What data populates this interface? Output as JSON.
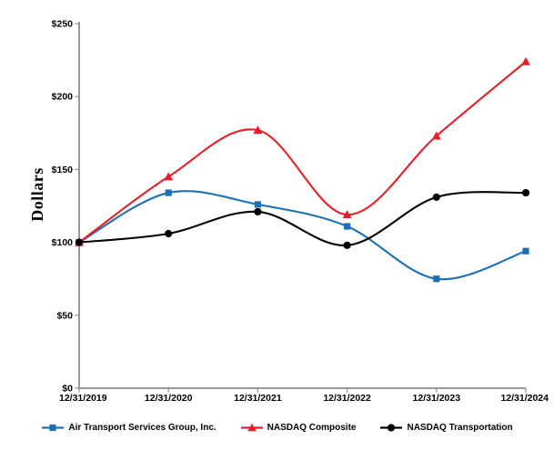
{
  "chart_data": {
    "type": "line",
    "title": "",
    "xlabel": "",
    "ylabel": "Dollars",
    "categories": [
      "12/31/2019",
      "12/31/2020",
      "12/31/2021",
      "12/31/2022",
      "12/31/2023",
      "12/31/2024"
    ],
    "ylim": [
      0,
      250
    ],
    "ytick_interval": 50,
    "ytick_prefix": "$",
    "grid": false,
    "line_style": "smooth",
    "legend_position": "bottom",
    "axis_color": "#8c8c8c",
    "series": [
      {
        "name": "Air Transport Services Group, Inc.",
        "color": "#1971b8",
        "marker": "square",
        "values": [
          100,
          134,
          126,
          111,
          75,
          94
        ]
      },
      {
        "name": "NASDAQ Composite",
        "color": "#ec1c24",
        "marker": "triangle",
        "values": [
          100,
          145,
          177,
          119,
          173,
          224
        ]
      },
      {
        "name": "NASDAQ Transportation",
        "color": "#000000",
        "marker": "circle",
        "values": [
          100,
          106,
          121,
          98,
          131,
          134
        ]
      }
    ]
  }
}
